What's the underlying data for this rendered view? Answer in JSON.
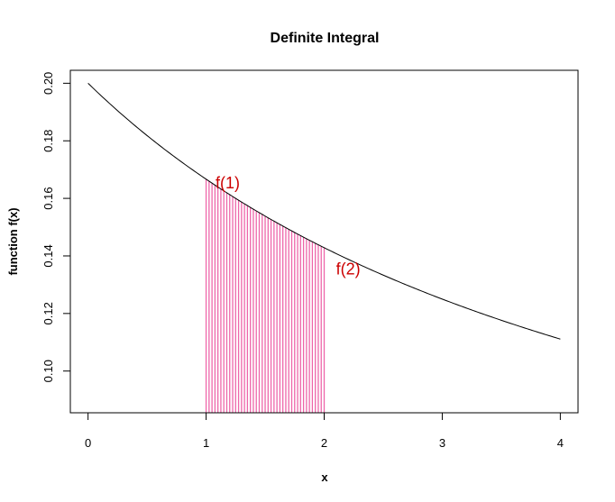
{
  "chart_data": {
    "type": "line",
    "title": "Definite Integral",
    "xlabel": "x",
    "ylabel": "function f(x)",
    "xlim": [
      -0.15,
      4.15
    ],
    "ylim": [
      0.0855,
      0.2045
    ],
    "x_ticks": [
      0,
      1,
      2,
      3,
      4
    ],
    "y_ticks": [
      0.1,
      0.12,
      0.14,
      0.16,
      0.18,
      0.2
    ],
    "y_tick_labels": [
      "0.10",
      "0.12",
      "0.14",
      "0.16",
      "0.18",
      "0.20"
    ],
    "grid": false,
    "series": [
      {
        "curve": "y = 1/(x+5)",
        "x": [
          0,
          0.25,
          0.5,
          0.75,
          1,
          1.25,
          1.5,
          1.75,
          2,
          2.25,
          2.5,
          2.75,
          3,
          3.25,
          3.5,
          3.75,
          4
        ],
        "y": [
          0.2,
          0.1905,
          0.1818,
          0.1739,
          0.1667,
          0.16,
          0.1538,
          0.1481,
          0.1429,
          0.1379,
          0.1333,
          0.129,
          0.125,
          0.1212,
          0.1176,
          0.1143,
          0.1111
        ],
        "color": "#000000"
      }
    ],
    "shaded_region": {
      "x_from": 1,
      "x_to": 2,
      "color": "#ee66aa"
    },
    "annotations": [
      {
        "text": "f(1)",
        "x": 1.08,
        "y": 0.1635,
        "color": "#cc0000"
      },
      {
        "text": "f(2)",
        "x": 2.1,
        "y": 0.1335,
        "color": "#cc0000"
      }
    ]
  }
}
